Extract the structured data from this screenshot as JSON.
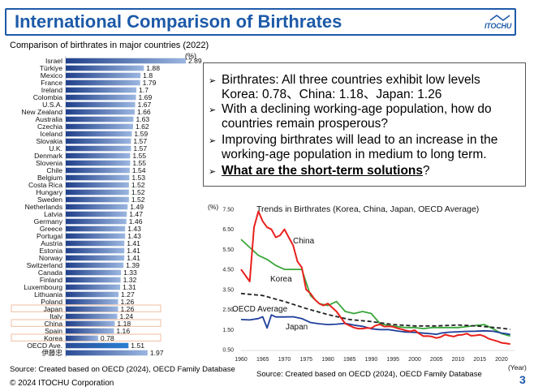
{
  "header": {
    "title": "International Comparison of Birthrates",
    "logo_text": "ITOCHU"
  },
  "bar_panel": {
    "subtitle": "Comparison of birthrates in major countries (2022)",
    "unit": "(%)",
    "source": "Source: Created based on OECD (2024), OECD Family Database"
  },
  "textbox": {
    "line1": "Birthrates: All three countries exhibit low levels",
    "line2": "Korea: 0.78、China: 1.18、Japan: 1.26",
    "line3": "With a declining working-age population, how do",
    "line4": "countries remain prosperous?",
    "line5": "Improving birthrates will lead to an increase in the",
    "line6": "working-age population in medium to long term.",
    "line7_strong": "What are the short-term solutions",
    "line7_tail": "?"
  },
  "line_panel": {
    "source": "Source: Created based on OECD (2024), OECD Family Database"
  },
  "footer": {
    "copyright": "© 2024 ITOCHU Corporation",
    "page": "3"
  },
  "colors": {
    "brand": "#1d5aa8",
    "bar_dark": "#1f3f8a",
    "bar_light": "#9bb6e0",
    "highlight_box": "#f3c9b0",
    "korea": "#e8211d",
    "china": "#3aa63a",
    "japan": "#1f3f9a",
    "oecd": "#222222"
  },
  "chart_data": [
    {
      "type": "bar",
      "orientation": "horizontal",
      "title": "Comparison of birthrates in major countries (2022)",
      "unit": "(%)",
      "categories": [
        "Israel",
        "Türkiye",
        "Mexico",
        "France",
        "Ireland",
        "Colombia",
        "U.S.A.",
        "New Zealand",
        "Australia",
        "Czechia",
        "Iceland",
        "Slovakia",
        "U.K.",
        "Denmark",
        "Slovenia",
        "Chile",
        "Belgium",
        "Costa Rica",
        "Hungary",
        "Sweden",
        "Netherlands",
        "Latvia",
        "Germany",
        "Greece",
        "Portugal",
        "Austria",
        "Estonia",
        "Norway",
        "Switzerland",
        "Canada",
        "Finland",
        "Luxembourg",
        "Lithuania",
        "Poland",
        "Japan",
        "Italy",
        "China",
        "Spain",
        "Korea",
        "OECD Ave.",
        "伊藤忠"
      ],
      "values": [
        2.89,
        1.88,
        1.8,
        1.79,
        1.7,
        1.69,
        1.67,
        1.66,
        1.63,
        1.62,
        1.59,
        1.57,
        1.57,
        1.55,
        1.55,
        1.54,
        1.53,
        1.52,
        1.52,
        1.52,
        1.49,
        1.47,
        1.46,
        1.43,
        1.43,
        1.41,
        1.41,
        1.41,
        1.39,
        1.33,
        1.32,
        1.31,
        1.27,
        1.26,
        1.26,
        1.24,
        1.18,
        1.16,
        0.78,
        1.51,
        1.97
      ],
      "highlighted": [
        "Japan",
        "China",
        "Korea"
      ]
    },
    {
      "type": "line",
      "title": "Trends in Birthrates (Korea, China, Japan, OECD Average)",
      "ylabel": "(%)",
      "xlabel": "(Year)",
      "xlim": [
        1960,
        2023
      ],
      "ylim": [
        0.5,
        7.5
      ],
      "xticks": [
        1960,
        1965,
        1970,
        1975,
        1980,
        1985,
        1990,
        1995,
        2000,
        2005,
        2010,
        2015,
        2020
      ],
      "yticks": [
        0.5,
        1.5,
        2.5,
        3.5,
        4.5,
        5.5,
        6.5,
        7.5
      ],
      "series": [
        {
          "name": "Korea",
          "color": "#e8211d",
          "x": [
            1960,
            1962,
            1963,
            1964,
            1965,
            1966,
            1967,
            1968,
            1969,
            1970,
            1971,
            1972,
            1973,
            1974,
            1975,
            1976,
            1977,
            1978,
            1979,
            1980,
            1981,
            1982,
            1983,
            1984,
            1985,
            1986,
            1987,
            1988,
            1989,
            1990,
            1991,
            1992,
            1993,
            1994,
            1995,
            1996,
            1997,
            1998,
            1999,
            2000,
            2001,
            2002,
            2003,
            2004,
            2005,
            2006,
            2007,
            2008,
            2009,
            2010,
            2011,
            2012,
            2013,
            2014,
            2015,
            2016,
            2017,
            2018,
            2019,
            2020,
            2021,
            2022
          ],
          "values": [
            4.5,
            3.9,
            6.6,
            7.4,
            6.9,
            6.6,
            6.5,
            6.1,
            6.2,
            6.5,
            6.1,
            5.7,
            4.9,
            4.6,
            3.5,
            3.3,
            3.0,
            2.8,
            2.7,
            2.8,
            2.6,
            2.4,
            2.1,
            1.8,
            1.7,
            1.6,
            1.55,
            1.55,
            1.58,
            1.57,
            1.7,
            1.76,
            1.65,
            1.66,
            1.64,
            1.57,
            1.52,
            1.45,
            1.41,
            1.47,
            1.3,
            1.17,
            1.18,
            1.15,
            1.08,
            1.13,
            1.25,
            1.19,
            1.15,
            1.23,
            1.24,
            1.3,
            1.19,
            1.21,
            1.24,
            1.17,
            1.05,
            0.98,
            0.92,
            0.84,
            0.81,
            0.78
          ]
        },
        {
          "name": "China",
          "color": "#3aa63a",
          "x": [
            1960,
            1962,
            1964,
            1966,
            1968,
            1970,
            1972,
            1974,
            1976,
            1978,
            1980,
            1982,
            1984,
            1986,
            1988,
            1990,
            1992,
            1994,
            1996,
            1998,
            2000,
            2002,
            2004,
            2006,
            2008,
            2010,
            2012,
            2014,
            2016,
            2018,
            2020,
            2022
          ],
          "values": [
            6.0,
            5.6,
            5.2,
            5.0,
            4.7,
            4.5,
            4.5,
            4.5,
            3.2,
            2.8,
            2.7,
            2.9,
            2.4,
            2.3,
            2.4,
            2.3,
            1.8,
            1.7,
            1.65,
            1.6,
            1.6,
            1.55,
            1.6,
            1.6,
            1.6,
            1.6,
            1.65,
            1.7,
            1.75,
            1.55,
            1.3,
            1.18
          ]
        },
        {
          "name": "Japan",
          "color": "#1f3f9a",
          "x": [
            1960,
            1962,
            1964,
            1965,
            1966,
            1967,
            1968,
            1970,
            1972,
            1974,
            1976,
            1978,
            1980,
            1982,
            1984,
            1986,
            1988,
            1990,
            1992,
            1994,
            1996,
            1998,
            2000,
            2002,
            2004,
            2005,
            2006,
            2008,
            2010,
            2012,
            2014,
            2016,
            2018,
            2020,
            2022
          ],
          "values": [
            2.0,
            1.98,
            2.05,
            2.14,
            1.58,
            2.23,
            2.13,
            2.13,
            2.14,
            2.05,
            1.85,
            1.79,
            1.75,
            1.77,
            1.81,
            1.72,
            1.66,
            1.54,
            1.5,
            1.5,
            1.43,
            1.38,
            1.36,
            1.32,
            1.29,
            1.26,
            1.32,
            1.37,
            1.39,
            1.41,
            1.42,
            1.44,
            1.42,
            1.33,
            1.26
          ]
        },
        {
          "name": "OECD Average",
          "color": "#222222",
          "x": [
            1960,
            1965,
            1970,
            1975,
            1980,
            1985,
            1990,
            1995,
            2000,
            2005,
            2010,
            2015,
            2020,
            2022
          ],
          "values": [
            3.3,
            3.2,
            2.9,
            2.55,
            2.25,
            2.0,
            1.9,
            1.75,
            1.68,
            1.68,
            1.73,
            1.67,
            1.57,
            1.51
          ]
        }
      ]
    }
  ]
}
